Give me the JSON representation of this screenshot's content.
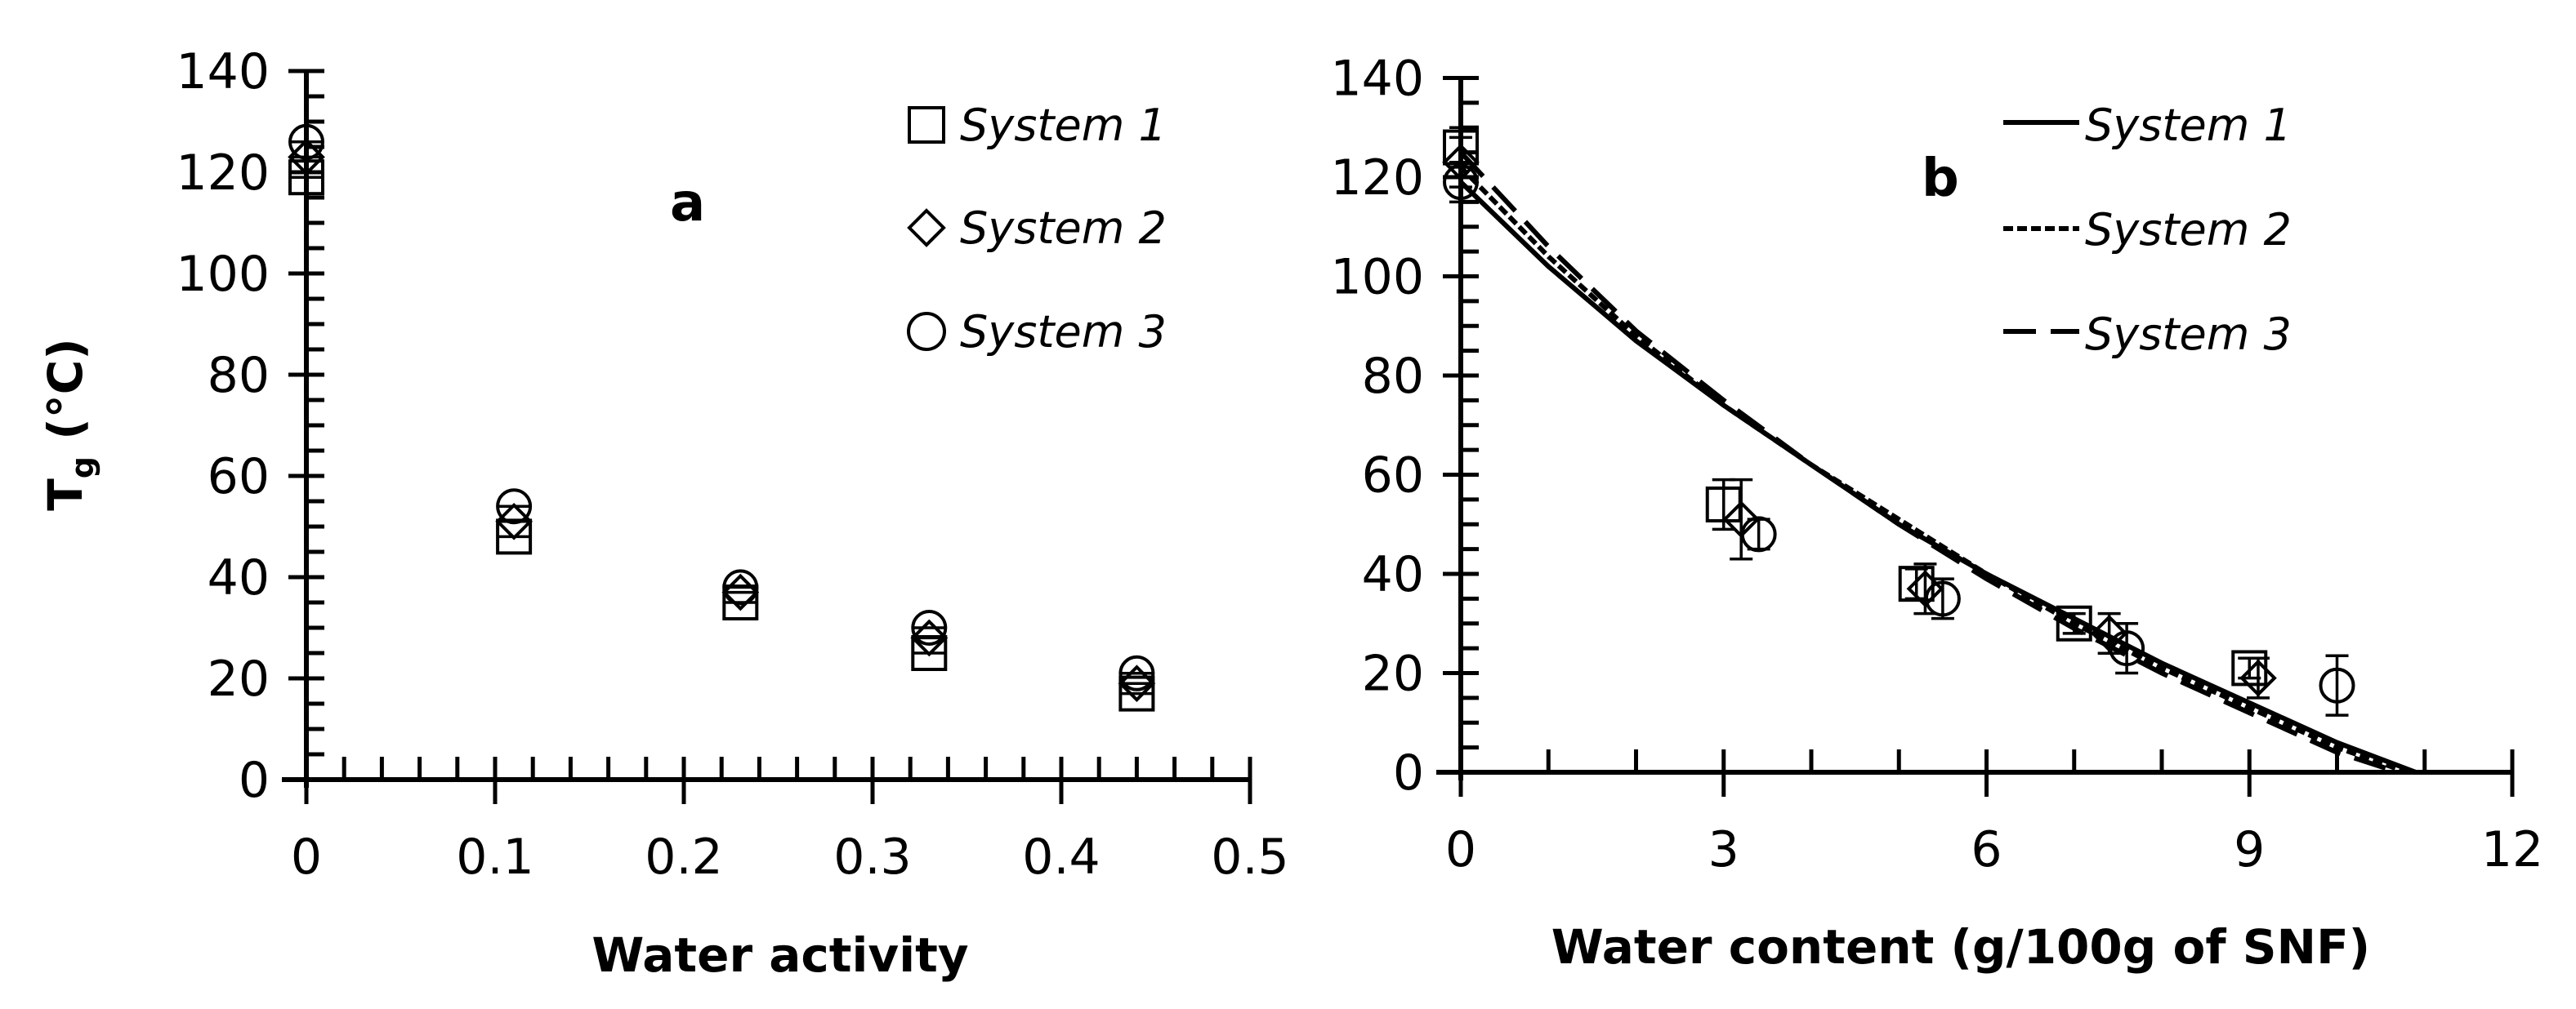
{
  "figure": {
    "panels": [
      {
        "id": "a",
        "label": "a",
        "xlabel": "Water activity",
        "ylabel": "T",
        "ylabel_sub": "g",
        "ylabel_unit": " (°C)",
        "xticks": [
          "0",
          "0.1",
          "0.2",
          "0.3",
          "0.4",
          "0.5"
        ],
        "yticks": [
          "0",
          "20",
          "40",
          "60",
          "80",
          "100",
          "120",
          "140"
        ],
        "legend": [
          {
            "marker": "square-icon",
            "label": "System 1"
          },
          {
            "marker": "diamond-icon",
            "label": "System 2"
          },
          {
            "marker": "circle-icon",
            "label": "System 3"
          }
        ]
      },
      {
        "id": "b",
        "label": "b",
        "xlabel": "Water content (g/100g of SNF)",
        "xticks": [
          "0",
          "3",
          "6",
          "9",
          "12"
        ],
        "yticks": [
          "0",
          "20",
          "40",
          "60",
          "80",
          "100",
          "120",
          "140"
        ],
        "legend": [
          {
            "line": "solid",
            "label": "System 1"
          },
          {
            "line": "short-dash",
            "label": "System 2"
          },
          {
            "line": "long-dash",
            "label": "System 3"
          }
        ]
      }
    ]
  },
  "chart_data": [
    {
      "type": "scatter",
      "panel": "a",
      "title": "",
      "xlabel": "Water activity",
      "ylabel": "Tg (°C)",
      "xlim": [
        0,
        0.5
      ],
      "ylim": [
        0,
        140
      ],
      "grid": false,
      "legend_position": "upper right",
      "series": [
        {
          "name": "System 1",
          "marker": "square",
          "x": [
            0,
            0.11,
            0.23,
            0.33,
            0.44
          ],
          "y": [
            119,
            48,
            35,
            25,
            17
          ]
        },
        {
          "name": "System 2",
          "marker": "diamond",
          "x": [
            0,
            0.11,
            0.23,
            0.33,
            0.44
          ],
          "y": [
            123,
            51,
            37,
            28,
            19
          ]
        },
        {
          "name": "System 3",
          "marker": "circle",
          "x": [
            0,
            0.11,
            0.23,
            0.33,
            0.44
          ],
          "y": [
            126,
            54,
            38,
            30,
            21
          ]
        }
      ]
    },
    {
      "type": "scatter",
      "panel": "b",
      "title": "",
      "xlabel": "Water content (g/100g of SNF)",
      "ylabel": "Tg (°C)",
      "xlim": [
        0,
        12
      ],
      "ylim": [
        0,
        140
      ],
      "grid": false,
      "legend_position": "upper right",
      "series": [
        {
          "name": "System 1",
          "marker": "square",
          "line": "solid",
          "x": [
            0,
            3.0,
            5.2,
            7.0,
            9.0
          ],
          "y": [
            126,
            54,
            38,
            30,
            21
          ],
          "yerr": [
            4,
            5,
            3,
            2,
            2
          ]
        },
        {
          "name": "System 2",
          "marker": "diamond",
          "line": "short-dash",
          "x": [
            0,
            3.2,
            5.3,
            7.4,
            9.1
          ],
          "y": [
            123,
            51,
            37,
            28,
            19
          ],
          "yerr": [
            5,
            8,
            5,
            4,
            4
          ]
        },
        {
          "name": "System 3",
          "marker": "circle",
          "line": "long-dash",
          "x": [
            0,
            3.4,
            5.5,
            7.6,
            10.0
          ],
          "y": [
            119,
            48,
            35,
            25,
            17.5
          ],
          "yerr": [
            4,
            3,
            4,
            5,
            6
          ]
        }
      ],
      "fit_curves": [
        {
          "name": "System 1",
          "line": "solid",
          "x": [
            0,
            1,
            2,
            3,
            4,
            5,
            6,
            7,
            8,
            9,
            10,
            10.9
          ],
          "y": [
            119,
            102,
            87,
            74,
            62,
            50,
            40,
            31,
            22,
            14,
            6,
            0
          ]
        },
        {
          "name": "System 2",
          "line": "short-dash",
          "x": [
            0,
            1,
            2,
            3,
            4,
            5,
            6,
            7,
            8,
            9,
            10,
            10.8
          ],
          "y": [
            122,
            104,
            88,
            74,
            62,
            51,
            40,
            30,
            21,
            13,
            5,
            0
          ]
        },
        {
          "name": "System 3",
          "line": "long-dash",
          "x": [
            0,
            1,
            2,
            3,
            4,
            5,
            6,
            7,
            8,
            9,
            10,
            10.7
          ],
          "y": [
            125,
            106,
            89,
            75,
            62,
            50,
            39,
            29,
            20,
            12,
            4,
            0
          ]
        }
      ]
    }
  ]
}
